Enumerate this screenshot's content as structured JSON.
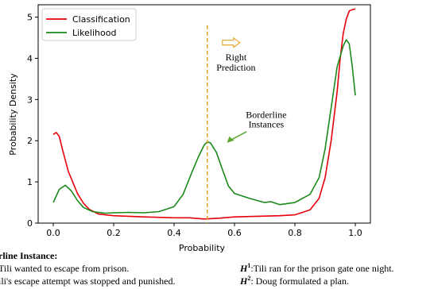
{
  "chart_data": {
    "type": "line",
    "title": "",
    "xlabel": "Probability",
    "ylabel": "Probability Density",
    "xlim": [
      -0.05,
      1.05
    ],
    "ylim": [
      0,
      5.3
    ],
    "xticks": [
      "0.0",
      "0.2",
      "0.4",
      "0.6",
      "0.8",
      "1.0"
    ],
    "yticks": [
      "0",
      "1",
      "2",
      "3",
      "4",
      "5"
    ],
    "legend_position": "top-left",
    "grid": false,
    "series": [
      {
        "name": "Classification",
        "color": "#e8000b",
        "x": [
          0.0,
          0.01,
          0.02,
          0.03,
          0.05,
          0.08,
          0.1,
          0.12,
          0.15,
          0.2,
          0.3,
          0.4,
          0.45,
          0.5,
          0.55,
          0.6,
          0.7,
          0.75,
          0.8,
          0.85,
          0.88,
          0.9,
          0.92,
          0.94,
          0.95,
          0.96,
          0.97,
          0.98,
          0.99,
          1.0
        ],
        "values": [
          2.15,
          2.2,
          2.1,
          1.8,
          1.25,
          0.72,
          0.48,
          0.33,
          0.22,
          0.18,
          0.15,
          0.13,
          0.13,
          0.1,
          0.12,
          0.15,
          0.17,
          0.18,
          0.2,
          0.32,
          0.6,
          1.1,
          2.0,
          3.2,
          4.0,
          4.6,
          4.95,
          5.15,
          5.18,
          5.2
        ]
      },
      {
        "name": "Likelihood",
        "color": "#1a8a1a",
        "x": [
          0.0,
          0.02,
          0.04,
          0.06,
          0.08,
          0.1,
          0.13,
          0.17,
          0.2,
          0.25,
          0.3,
          0.35,
          0.4,
          0.43,
          0.46,
          0.48,
          0.5,
          0.51,
          0.52,
          0.54,
          0.56,
          0.58,
          0.6,
          0.65,
          0.7,
          0.72,
          0.75,
          0.8,
          0.85,
          0.88,
          0.9,
          0.92,
          0.94,
          0.96,
          0.97,
          0.98,
          0.99,
          1.0
        ],
        "values": [
          0.5,
          0.82,
          0.92,
          0.78,
          0.55,
          0.38,
          0.28,
          0.24,
          0.25,
          0.26,
          0.25,
          0.28,
          0.4,
          0.7,
          1.25,
          1.6,
          1.9,
          1.97,
          1.95,
          1.72,
          1.3,
          0.9,
          0.72,
          0.6,
          0.5,
          0.52,
          0.45,
          0.5,
          0.7,
          1.1,
          1.8,
          2.8,
          3.8,
          4.3,
          4.45,
          4.35,
          3.8,
          3.1
        ]
      }
    ],
    "annotations": {
      "right_prediction": [
        "Right",
        "Prediction"
      ],
      "borderline": [
        "Borderline",
        "Instances"
      ],
      "vline_x": 0.51,
      "vline_color": "#e0a020"
    }
  },
  "caption": {
    "left_title": "rline Instance:",
    "left_line1": "Tili wanted to escape from prison.",
    "left_line2": "ili's escape attempt was stopped and punished.",
    "right_line1_label": "1",
    "right_line1_text": ":Tili ran for the prison gate one night.",
    "right_line2_label": "2",
    "right_line2_text": ": Doug formulated a plan."
  }
}
